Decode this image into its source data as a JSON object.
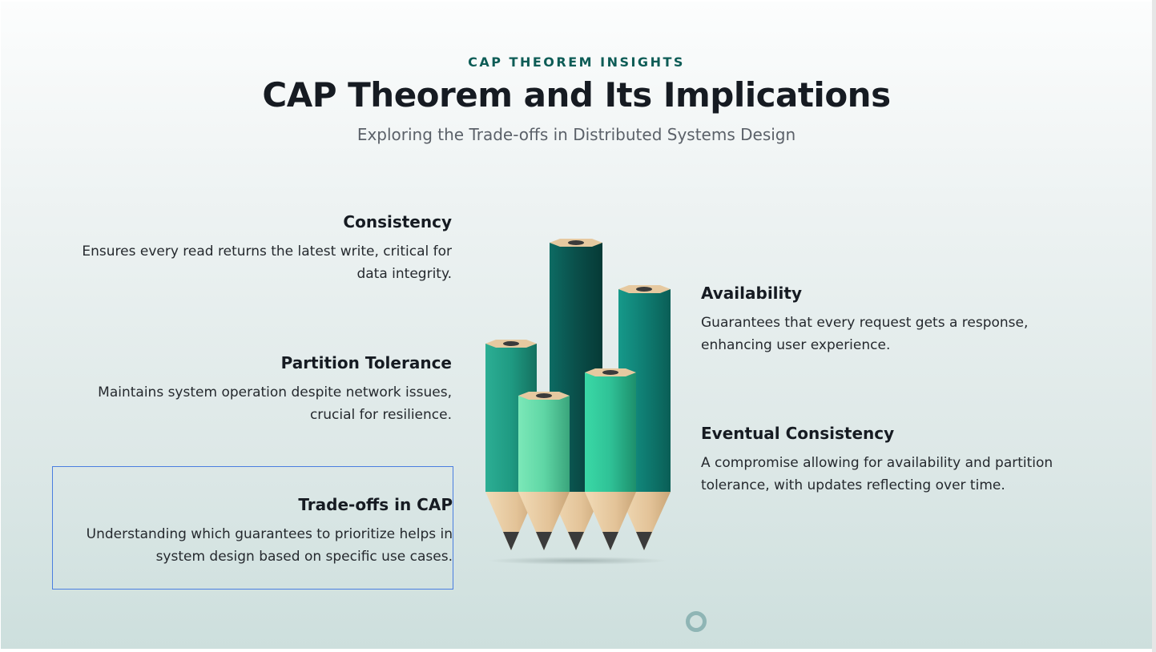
{
  "header": {
    "kicker": "CAP THEOREM INSIGHTS",
    "title": "CAP Theorem and Its Implications",
    "subtitle": "Exploring the Trade-offs in Distributed Systems Design"
  },
  "left_items": [
    {
      "title": "Consistency",
      "description": "Ensures every read returns the latest write, critical for data integrity."
    },
    {
      "title": "Partition Tolerance",
      "description": "Maintains system operation despite network issues, crucial for resilience."
    },
    {
      "title": "Trade-offs in CAP",
      "description": "Understanding which guarantees to prioritize helps in system design based on specific use cases."
    }
  ],
  "right_items": [
    {
      "title": "Availability",
      "description": "Guarantees that every request gets a response, enhancing user experience."
    },
    {
      "title": "Eventual Consistency",
      "description": "A compromise allowing for availability and partition tolerance, with updates reflecting over time."
    }
  ],
  "illustration": {
    "icon": "pencils-illustration",
    "colors": {
      "dark_teal": "#0a4f4a",
      "teal": "#0f7d72",
      "green": "#2fc196",
      "light_green": "#5fd6a5",
      "wood": "#e6c9a0",
      "lead": "#3b3b3b"
    }
  },
  "pagination": {
    "icon": "slide-indicator-icon",
    "color": "#8fb5b5"
  }
}
